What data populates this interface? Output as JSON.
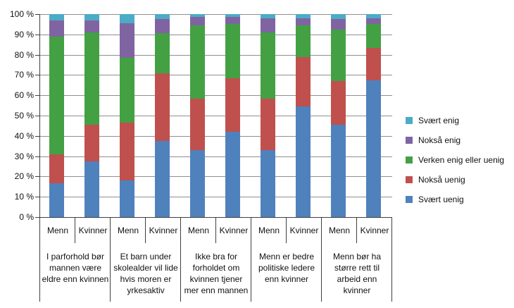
{
  "chart_data": {
    "type": "bar",
    "variant": "stacked-100-percent",
    "title": "",
    "xlabel": "",
    "ylabel": "",
    "ylim": [
      0,
      100
    ],
    "grid": true,
    "legend_position": "right",
    "y_ticks": [
      "100 %",
      "90 %",
      "80 %",
      "70 %",
      "60 %",
      "50 %",
      "40 %",
      "30 %",
      "20 %",
      "10 %",
      "0 %"
    ],
    "sub_categories": [
      "Menn",
      "Kvinner"
    ],
    "groups": [
      {
        "label": "I parforhold bør mannen være eldre enn kvinnen",
        "lines": [
          "I parforhold bør",
          "mannen være",
          "eldre enn kvinnen"
        ]
      },
      {
        "label": "Et barn under skolealder vil lide hvis moren er yrkesaktiv",
        "lines": [
          "Et barn under",
          "skolealder vil lide",
          "hvis moren er",
          "yrkesaktiv"
        ]
      },
      {
        "label": "Ikke bra for forholdet om kvinnen tjener mer enn mannen",
        "lines": [
          "Ikke bra for",
          "forholdet om",
          "kvinnen tjener",
          "mer enn mannen"
        ]
      },
      {
        "label": "Menn er bedre politiske ledere enn kvinner",
        "lines": [
          "Menn er bedre",
          "politiske ledere",
          "enn kvinner"
        ]
      },
      {
        "label": "Menn bør ha større rett til arbeid enn kvinner",
        "lines": [
          "Menn bør ha",
          "større rett til",
          "arbeid enn",
          "kvinner"
        ]
      }
    ],
    "bar_order": [
      "Menn (I parforhold...)",
      "Kvinner (I parforhold...)",
      "Menn (Et barn under...)",
      "Kvinner (Et barn under...)",
      "Menn (Ikke bra...)",
      "Kvinner (Ikke bra...)",
      "Menn (Menn er bedre...)",
      "Kvinner (Menn er bedre...)",
      "Menn (Menn bør ha...)",
      "Kvinner (Menn bør ha...)"
    ],
    "series": [
      {
        "name": "Svært uenig",
        "color": "#4F81BD",
        "values": [
          16.5,
          27.5,
          18,
          37.5,
          33,
          42,
          33,
          54.5,
          45.5,
          67.5
        ]
      },
      {
        "name": "Nokså uenig",
        "color": "#C0504D",
        "values": [
          14.5,
          18,
          28.5,
          33.5,
          25.5,
          26.5,
          25.5,
          24.5,
          21.5,
          16
        ]
      },
      {
        "name": "Verken enig eller uenig",
        "color": "#43A143",
        "values": [
          58,
          45.5,
          32,
          19.5,
          36,
          26.5,
          32.5,
          15.5,
          25.5,
          11.5
        ]
      },
      {
        "name": "Nokså enig",
        "color": "#8064A2",
        "values": [
          8,
          6,
          17,
          7,
          4,
          3.5,
          7,
          3.5,
          5,
          3
        ]
      },
      {
        "name": "Svært enig",
        "color": "#4BACC6",
        "values": [
          3,
          3,
          4.5,
          2.5,
          1.5,
          1.5,
          2,
          2,
          2.5,
          2
        ]
      }
    ],
    "legend": [
      {
        "label": "Svært enig",
        "color": "#4BACC6"
      },
      {
        "label": "Nokså enig",
        "color": "#8064A2"
      },
      {
        "label": "Verken enig eller uenig",
        "color": "#43A143"
      },
      {
        "label": "Nokså uenig",
        "color": "#C0504D"
      },
      {
        "label": "Svært uenig",
        "color": "#4F81BD"
      }
    ],
    "colors": {
      "gridline": "#8f8f8f",
      "axis": "#3f3f3f",
      "background": "#ffffff"
    }
  }
}
